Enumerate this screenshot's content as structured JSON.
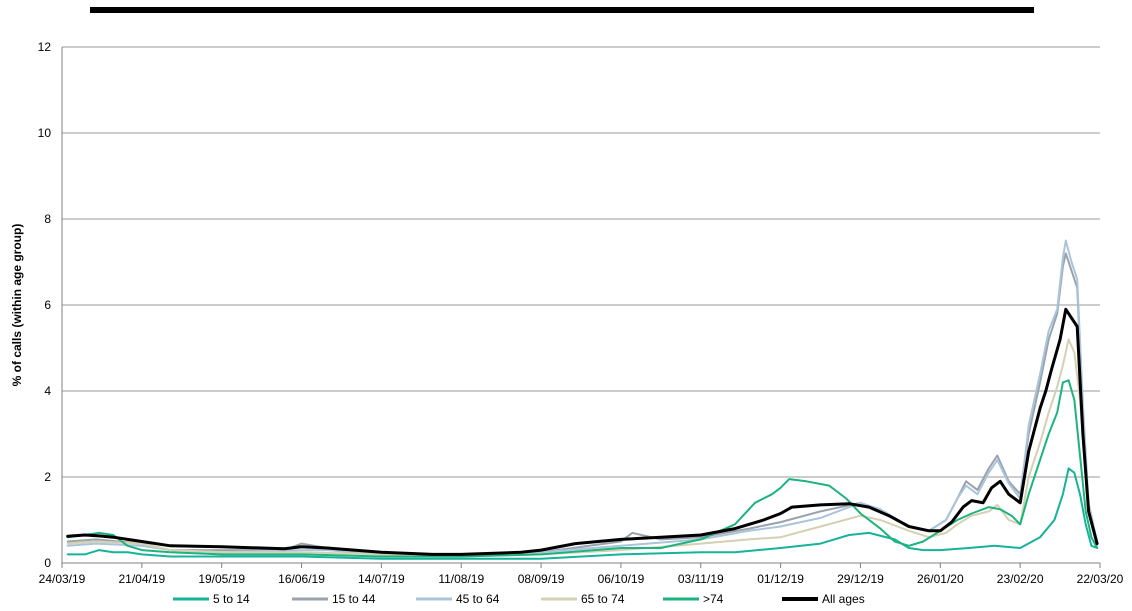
{
  "chart_data": {
    "type": "line",
    "title": "",
    "xlabel": "",
    "ylabel": "% of calls (within age group)",
    "ylim": [
      0,
      12
    ],
    "yticks": [
      0,
      2,
      4,
      6,
      8,
      10,
      12
    ],
    "xlim": [
      "2019-03-24",
      "2020-03-22"
    ],
    "xtick_labels": [
      "24/03/19",
      "21/04/19",
      "19/05/19",
      "16/06/19",
      "14/07/19",
      "11/08/19",
      "08/09/19",
      "06/10/19",
      "03/11/19",
      "01/12/19",
      "29/12/19",
      "26/01/20",
      "23/02/20",
      "22/03/20"
    ],
    "grid": "horizontal",
    "legend_position": "bottom",
    "series": [
      {
        "name": "5 to 14",
        "color": "#17b29a",
        "width": 2,
        "points": [
          [
            "2019-03-26",
            0.2
          ],
          [
            "2019-04-01",
            0.2
          ],
          [
            "2019-04-06",
            0.3
          ],
          [
            "2019-04-11",
            0.25
          ],
          [
            "2019-04-16",
            0.25
          ],
          [
            "2019-04-21",
            0.2
          ],
          [
            "2019-05-01",
            0.15
          ],
          [
            "2019-05-19",
            0.15
          ],
          [
            "2019-06-16",
            0.15
          ],
          [
            "2019-07-14",
            0.1
          ],
          [
            "2019-08-11",
            0.1
          ],
          [
            "2019-09-08",
            0.1
          ],
          [
            "2019-10-06",
            0.2
          ],
          [
            "2019-11-03",
            0.25
          ],
          [
            "2019-11-15",
            0.25
          ],
          [
            "2019-12-01",
            0.35
          ],
          [
            "2019-12-15",
            0.45
          ],
          [
            "2019-12-25",
            0.65
          ],
          [
            "2020-01-01",
            0.7
          ],
          [
            "2020-01-10",
            0.55
          ],
          [
            "2020-01-15",
            0.35
          ],
          [
            "2020-01-20",
            0.3
          ],
          [
            "2020-01-26",
            0.3
          ],
          [
            "2020-02-05",
            0.35
          ],
          [
            "2020-02-14",
            0.4
          ],
          [
            "2020-02-23",
            0.35
          ],
          [
            "2020-03-01",
            0.6
          ],
          [
            "2020-03-06",
            1.0
          ],
          [
            "2020-03-09",
            1.6
          ],
          [
            "2020-03-11",
            2.2
          ],
          [
            "2020-03-13",
            2.1
          ],
          [
            "2020-03-15",
            1.6
          ],
          [
            "2020-03-17",
            0.9
          ],
          [
            "2020-03-19",
            0.4
          ],
          [
            "2020-03-21",
            0.35
          ]
        ]
      },
      {
        "name": "15 to 44",
        "color": "#9aa3ab",
        "width": 2,
        "points": [
          [
            "2019-03-26",
            0.5
          ],
          [
            "2019-04-05",
            0.55
          ],
          [
            "2019-04-21",
            0.45
          ],
          [
            "2019-05-01",
            0.3
          ],
          [
            "2019-05-19",
            0.3
          ],
          [
            "2019-06-10",
            0.3
          ],
          [
            "2019-06-16",
            0.45
          ],
          [
            "2019-06-25",
            0.35
          ],
          [
            "2019-07-14",
            0.2
          ],
          [
            "2019-08-11",
            0.2
          ],
          [
            "2019-09-08",
            0.25
          ],
          [
            "2019-10-06",
            0.5
          ],
          [
            "2019-10-10",
            0.7
          ],
          [
            "2019-10-20",
            0.55
          ],
          [
            "2019-11-03",
            0.6
          ],
          [
            "2019-11-20",
            0.8
          ],
          [
            "2019-12-01",
            0.95
          ],
          [
            "2019-12-15",
            1.2
          ],
          [
            "2019-12-29",
            1.4
          ],
          [
            "2020-01-05",
            1.2
          ],
          [
            "2020-01-15",
            0.85
          ],
          [
            "2020-01-22",
            0.75
          ],
          [
            "2020-01-28",
            1.0
          ],
          [
            "2020-02-01",
            1.5
          ],
          [
            "2020-02-04",
            1.9
          ],
          [
            "2020-02-08",
            1.7
          ],
          [
            "2020-02-12",
            2.2
          ],
          [
            "2020-02-15",
            2.5
          ],
          [
            "2020-02-19",
            1.9
          ],
          [
            "2020-02-23",
            1.6
          ],
          [
            "2020-02-26",
            3.0
          ],
          [
            "2020-03-01",
            4.2
          ],
          [
            "2020-03-04",
            5.2
          ],
          [
            "2020-03-07",
            5.8
          ],
          [
            "2020-03-09",
            6.9
          ],
          [
            "2020-03-10",
            7.2
          ],
          [
            "2020-03-12",
            6.8
          ],
          [
            "2020-03-14",
            6.4
          ],
          [
            "2020-03-16",
            3.5
          ],
          [
            "2020-03-18",
            1.3
          ],
          [
            "2020-03-21",
            0.45
          ]
        ]
      },
      {
        "name": "45 to 64",
        "color": "#aac4dc",
        "width": 2,
        "points": [
          [
            "2019-03-26",
            0.4
          ],
          [
            "2019-04-05",
            0.45
          ],
          [
            "2019-04-21",
            0.4
          ],
          [
            "2019-05-01",
            0.3
          ],
          [
            "2019-05-19",
            0.25
          ],
          [
            "2019-06-16",
            0.3
          ],
          [
            "2019-06-25",
            0.3
          ],
          [
            "2019-07-14",
            0.2
          ],
          [
            "2019-08-11",
            0.2
          ],
          [
            "2019-09-08",
            0.25
          ],
          [
            "2019-10-06",
            0.4
          ],
          [
            "2019-11-03",
            0.55
          ],
          [
            "2019-11-20",
            0.75
          ],
          [
            "2019-12-01",
            0.85
          ],
          [
            "2019-12-15",
            1.05
          ],
          [
            "2019-12-29",
            1.4
          ],
          [
            "2020-01-05",
            1.25
          ],
          [
            "2020-01-15",
            0.85
          ],
          [
            "2020-01-22",
            0.75
          ],
          [
            "2020-01-28",
            1.0
          ],
          [
            "2020-02-01",
            1.5
          ],
          [
            "2020-02-04",
            1.8
          ],
          [
            "2020-02-08",
            1.6
          ],
          [
            "2020-02-12",
            2.1
          ],
          [
            "2020-02-15",
            2.4
          ],
          [
            "2020-02-19",
            1.85
          ],
          [
            "2020-02-23",
            1.5
          ],
          [
            "2020-02-26",
            3.2
          ],
          [
            "2020-03-01",
            4.4
          ],
          [
            "2020-03-04",
            5.4
          ],
          [
            "2020-03-07",
            5.9
          ],
          [
            "2020-03-09",
            7.1
          ],
          [
            "2020-03-10",
            7.5
          ],
          [
            "2020-03-12",
            7.0
          ],
          [
            "2020-03-14",
            6.6
          ],
          [
            "2020-03-16",
            3.7
          ],
          [
            "2020-03-18",
            1.4
          ],
          [
            "2020-03-21",
            0.5
          ]
        ]
      },
      {
        "name": "65 to 74",
        "color": "#d4d0b2",
        "width": 2,
        "points": [
          [
            "2019-03-26",
            0.45
          ],
          [
            "2019-04-05",
            0.5
          ],
          [
            "2019-04-21",
            0.45
          ],
          [
            "2019-05-01",
            0.3
          ],
          [
            "2019-05-19",
            0.25
          ],
          [
            "2019-06-16",
            0.25
          ],
          [
            "2019-07-14",
            0.2
          ],
          [
            "2019-08-11",
            0.15
          ],
          [
            "2019-09-08",
            0.2
          ],
          [
            "2019-10-06",
            0.3
          ],
          [
            "2019-11-03",
            0.45
          ],
          [
            "2019-11-20",
            0.55
          ],
          [
            "2019-12-01",
            0.6
          ],
          [
            "2019-12-15",
            0.85
          ],
          [
            "2019-12-29",
            1.1
          ],
          [
            "2020-01-05",
            1.0
          ],
          [
            "2020-01-15",
            0.75
          ],
          [
            "2020-01-22",
            0.6
          ],
          [
            "2020-01-28",
            0.7
          ],
          [
            "2020-02-01",
            0.9
          ],
          [
            "2020-02-06",
            1.1
          ],
          [
            "2020-02-12",
            1.2
          ],
          [
            "2020-02-15",
            1.35
          ],
          [
            "2020-02-19",
            1.0
          ],
          [
            "2020-02-23",
            0.9
          ],
          [
            "2020-02-26",
            2.0
          ],
          [
            "2020-03-01",
            2.8
          ],
          [
            "2020-03-04",
            3.5
          ],
          [
            "2020-03-07",
            4.1
          ],
          [
            "2020-03-09",
            4.6
          ],
          [
            "2020-03-11",
            5.2
          ],
          [
            "2020-03-13",
            4.9
          ],
          [
            "2020-03-15",
            3.8
          ],
          [
            "2020-03-17",
            2.0
          ],
          [
            "2020-03-19",
            0.9
          ],
          [
            "2020-03-21",
            0.4
          ]
        ]
      },
      {
        "name": ">74",
        "color": "#1db37d",
        "width": 2,
        "points": [
          [
            "2019-03-26",
            0.6
          ],
          [
            "2019-04-01",
            0.65
          ],
          [
            "2019-04-06",
            0.7
          ],
          [
            "2019-04-11",
            0.65
          ],
          [
            "2019-04-16",
            0.4
          ],
          [
            "2019-04-21",
            0.3
          ],
          [
            "2019-05-01",
            0.25
          ],
          [
            "2019-05-19",
            0.2
          ],
          [
            "2019-06-16",
            0.2
          ],
          [
            "2019-07-14",
            0.15
          ],
          [
            "2019-08-11",
            0.15
          ],
          [
            "2019-09-08",
            0.2
          ],
          [
            "2019-10-06",
            0.35
          ],
          [
            "2019-10-20",
            0.35
          ],
          [
            "2019-11-03",
            0.55
          ],
          [
            "2019-11-15",
            0.9
          ],
          [
            "2019-11-22",
            1.4
          ],
          [
            "2019-11-28",
            1.6
          ],
          [
            "2019-12-01",
            1.75
          ],
          [
            "2019-12-04",
            1.95
          ],
          [
            "2019-12-10",
            1.9
          ],
          [
            "2019-12-18",
            1.8
          ],
          [
            "2019-12-24",
            1.5
          ],
          [
            "2019-12-29",
            1.15
          ],
          [
            "2020-01-05",
            0.8
          ],
          [
            "2020-01-10",
            0.5
          ],
          [
            "2020-01-15",
            0.4
          ],
          [
            "2020-01-20",
            0.5
          ],
          [
            "2020-01-26",
            0.75
          ],
          [
            "2020-02-01",
            1.0
          ],
          [
            "2020-02-06",
            1.15
          ],
          [
            "2020-02-12",
            1.3
          ],
          [
            "2020-02-16",
            1.25
          ],
          [
            "2020-02-20",
            1.1
          ],
          [
            "2020-02-23",
            0.9
          ],
          [
            "2020-02-26",
            1.6
          ],
          [
            "2020-03-01",
            2.4
          ],
          [
            "2020-03-04",
            3.0
          ],
          [
            "2020-03-07",
            3.5
          ],
          [
            "2020-03-09",
            4.2
          ],
          [
            "2020-03-11",
            4.25
          ],
          [
            "2020-03-13",
            3.8
          ],
          [
            "2020-03-15",
            2.5
          ],
          [
            "2020-03-17",
            1.2
          ],
          [
            "2020-03-19",
            0.6
          ],
          [
            "2020-03-21",
            0.35
          ]
        ]
      },
      {
        "name": "All ages",
        "color": "#000000",
        "width": 3,
        "points": [
          [
            "2019-03-26",
            0.62
          ],
          [
            "2019-04-01",
            0.65
          ],
          [
            "2019-04-06",
            0.63
          ],
          [
            "2019-04-11",
            0.6
          ],
          [
            "2019-04-16",
            0.55
          ],
          [
            "2019-04-21",
            0.5
          ],
          [
            "2019-05-01",
            0.4
          ],
          [
            "2019-05-19",
            0.38
          ],
          [
            "2019-06-10",
            0.33
          ],
          [
            "2019-06-16",
            0.38
          ],
          [
            "2019-06-25",
            0.35
          ],
          [
            "2019-07-14",
            0.25
          ],
          [
            "2019-08-01",
            0.2
          ],
          [
            "2019-08-11",
            0.2
          ],
          [
            "2019-09-01",
            0.25
          ],
          [
            "2019-09-08",
            0.3
          ],
          [
            "2019-09-20",
            0.45
          ],
          [
            "2019-10-06",
            0.55
          ],
          [
            "2019-10-20",
            0.6
          ],
          [
            "2019-11-03",
            0.65
          ],
          [
            "2019-11-15",
            0.8
          ],
          [
            "2019-11-25",
            1.0
          ],
          [
            "2019-12-01",
            1.15
          ],
          [
            "2019-12-05",
            1.3
          ],
          [
            "2019-12-15",
            1.35
          ],
          [
            "2019-12-25",
            1.38
          ],
          [
            "2020-01-01",
            1.3
          ],
          [
            "2020-01-08",
            1.1
          ],
          [
            "2020-01-15",
            0.85
          ],
          [
            "2020-01-22",
            0.75
          ],
          [
            "2020-01-26",
            0.75
          ],
          [
            "2020-01-30",
            0.95
          ],
          [
            "2020-02-03",
            1.3
          ],
          [
            "2020-02-06",
            1.45
          ],
          [
            "2020-02-10",
            1.4
          ],
          [
            "2020-02-13",
            1.75
          ],
          [
            "2020-02-16",
            1.9
          ],
          [
            "2020-02-19",
            1.6
          ],
          [
            "2020-02-23",
            1.4
          ],
          [
            "2020-02-26",
            2.6
          ],
          [
            "2020-03-01",
            3.6
          ],
          [
            "2020-03-03",
            4.0
          ],
          [
            "2020-03-05",
            4.5
          ],
          [
            "2020-03-08",
            5.2
          ],
          [
            "2020-03-10",
            5.9
          ],
          [
            "2020-03-12",
            5.7
          ],
          [
            "2020-03-14",
            5.5
          ],
          [
            "2020-03-16",
            3.0
          ],
          [
            "2020-03-18",
            1.2
          ],
          [
            "2020-03-21",
            0.45
          ]
        ]
      }
    ]
  }
}
